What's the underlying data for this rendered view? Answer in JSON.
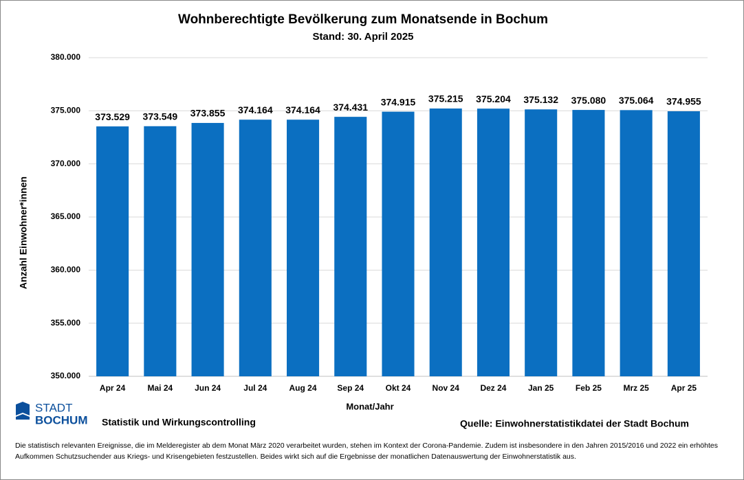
{
  "chart_data": {
    "type": "bar",
    "title": "Wohnberechtigte Bevölkerung zum Monatsende in Bochum",
    "subtitle": "Stand: 30. April 2025",
    "y_label": "Anzahl Einwohner*innen",
    "x_label": "Monat/Jahr",
    "categories": [
      "Apr 24",
      "Mai 24",
      "Jun 24",
      "Jul 24",
      "Aug 24",
      "Sep 24",
      "Okt 24",
      "Nov 24",
      "Dez 24",
      "Jan 25",
      "Feb 25",
      "Mrz 25",
      "Apr 25"
    ],
    "values": [
      373529,
      373549,
      373855,
      374164,
      374164,
      374431,
      374915,
      375215,
      375204,
      375132,
      375080,
      375064,
      374955
    ],
    "value_labels": [
      "373.529",
      "373.549",
      "373.855",
      "374.164",
      "374.164",
      "374.431",
      "374.915",
      "375.215",
      "375.204",
      "375.132",
      "375.080",
      "375.064",
      "374.955"
    ],
    "color": "#0b6fc1",
    "ylim": [
      350000,
      380000
    ],
    "yticks": [
      {
        "value": 350000,
        "label": "350.000"
      },
      {
        "value": 355000,
        "label": "355.000"
      },
      {
        "value": 360000,
        "label": "360.000"
      },
      {
        "value": 365000,
        "label": "365.000"
      },
      {
        "value": 370000,
        "label": "370.000"
      },
      {
        "value": 375000,
        "label": "375.000"
      },
      {
        "value": 380000,
        "label": "380.000"
      }
    ],
    "grid": true
  },
  "footer": {
    "logo_top": "STADT",
    "logo_bottom": "BOCHUM",
    "department": "Statistik und Wirkungscontrolling",
    "source": "Quelle:  Einwohnerstatistikdatei der Stadt Bochum",
    "note": "Die statistisch relevanten Ereignisse, die im Melderegister ab dem Monat März 2020 verarbeitet wurden, stehen im Kontext der Corona-Pandemie. Zudem ist insbesondere in den Jahren 2015/2016 und 2022 ein erhöhtes Aufkommen Schutzsuchender aus Kriegs- und Krisengebieten festzustellen. Beides wirkt sich auf die Ergebnisse der monatlichen Datenauswertung der Einwohnerstatistik aus."
  }
}
